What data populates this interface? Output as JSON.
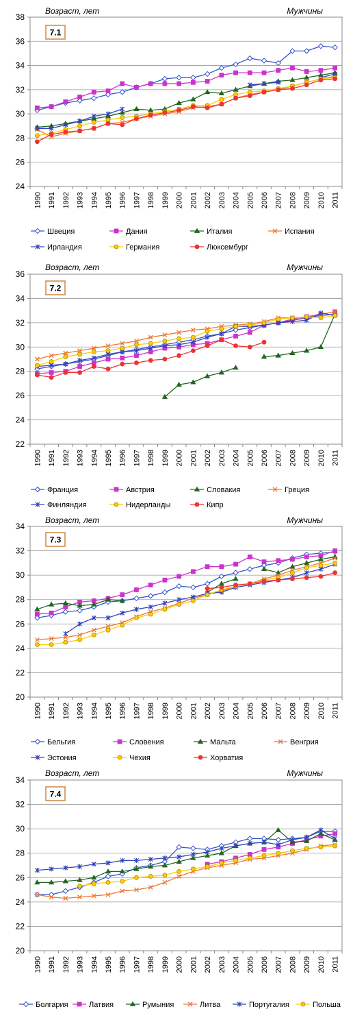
{
  "panels": [
    {
      "badge": "7.1",
      "ylabel": "Возраст, лет",
      "sex": "Мужчины"
    },
    {
      "badge": "7.2",
      "ylabel": "Возраст, лет",
      "sex": "Мужчины"
    },
    {
      "badge": "7.3",
      "ylabel": "Возраст, лет",
      "sex": "Мужчины"
    },
    {
      "badge": "7.4",
      "ylabel": "Возраст, лет",
      "sex": "Мужчины"
    }
  ],
  "chart_data": [
    {
      "type": "line",
      "title": "7.1",
      "ylabel": "Возраст, лет",
      "annotation": "Мужчины",
      "ylim": [
        24,
        38
      ],
      "ystep": 2,
      "grid": "horizontal",
      "legend_placement": "bottom",
      "x": [
        "1990",
        "1991",
        "1992",
        "1993",
        "1994",
        "1995",
        "1996",
        "1997",
        "1998",
        "1999",
        "2000",
        "2001",
        "2002",
        "2003",
        "2004",
        "2005",
        "2006",
        "2007",
        "2008",
        "2009",
        "2010",
        "2011"
      ],
      "series": [
        {
          "name": "Швеция",
          "color": "#3355cc",
          "marker": "diamond",
          "values": [
            30.3,
            30.6,
            30.9,
            31.1,
            31.3,
            31.6,
            31.8,
            32.2,
            32.5,
            32.9,
            33.0,
            33.0,
            33.3,
            33.8,
            34.1,
            34.6,
            34.4,
            34.2,
            35.2,
            35.2,
            35.6,
            35.5
          ]
        },
        {
          "name": "Дания",
          "color": "#cc33cc",
          "marker": "square",
          "values": [
            30.5,
            30.6,
            31.0,
            31.4,
            31.8,
            31.9,
            32.5,
            32.2,
            32.5,
            32.5,
            32.5,
            32.6,
            32.7,
            33.2,
            33.4,
            33.4,
            33.4,
            33.6,
            33.8,
            33.5,
            33.6,
            33.8
          ]
        },
        {
          "name": "Италия",
          "color": "#226622",
          "marker": "triangle",
          "values": [
            28.9,
            29.0,
            29.2,
            29.4,
            29.6,
            29.8,
            30.1,
            30.4,
            30.3,
            30.4,
            30.9,
            31.2,
            31.8,
            31.7,
            32.0,
            32.3,
            32.5,
            32.7,
            32.8,
            33.0,
            33.2,
            33.4
          ]
        },
        {
          "name": "Испания",
          "color": "#ee7733",
          "marker": "x",
          "values": [
            28.7,
            28.1,
            28.4,
            28.6,
            28.8,
            29.2,
            29.3,
            29.6,
            29.8,
            30.0,
            30.2,
            30.5,
            30.6,
            30.8,
            31.3,
            31.6,
            31.8,
            32.0,
            32.3,
            32.6,
            32.9,
            33.1
          ]
        },
        {
          "name": "Ирландия",
          "color": "#3344bb",
          "marker": "star",
          "values": [
            28.8,
            28.8,
            29.1,
            29.4,
            29.8,
            30.0,
            30.4,
            null,
            null,
            null,
            null,
            null,
            null,
            null,
            null,
            32.4,
            32.5,
            32.6,
            null,
            null,
            33.0,
            33.3
          ]
        },
        {
          "name": "Германия",
          "color": "#ffcc00",
          "marker": "circle",
          "values": [
            28.2,
            28.4,
            28.7,
            29.0,
            29.3,
            29.5,
            29.7,
            29.8,
            30.0,
            30.2,
            30.4,
            30.7,
            30.7,
            31.2,
            31.6,
            31.8,
            31.9,
            32.1,
            32.3,
            32.6,
            32.9,
            33.0
          ]
        },
        {
          "name": "Люксембург",
          "color": "#ee3333",
          "marker": "circle",
          "values": [
            27.7,
            28.3,
            28.5,
            28.6,
            28.8,
            29.2,
            29.1,
            29.6,
            29.9,
            30.1,
            30.3,
            30.6,
            30.5,
            30.8,
            31.3,
            31.5,
            31.8,
            32.0,
            32.1,
            32.4,
            32.8,
            32.9
          ]
        }
      ]
    },
    {
      "type": "line",
      "title": "7.2",
      "ylabel": "Возраст, лет",
      "annotation": "Мужчины",
      "ylim": [
        22,
        36
      ],
      "ystep": 2,
      "grid": "horizontal",
      "legend_placement": "bottom",
      "x": [
        "1990",
        "1991",
        "1992",
        "1993",
        "1994",
        "1995",
        "1996",
        "1997",
        "1998",
        "1999",
        "2000",
        "2001",
        "2002",
        "2003",
        "2004",
        "2005",
        "2006",
        "2007",
        "2008",
        "2009",
        "2010",
        "2011"
      ],
      "series": [
        {
          "name": "Франция",
          "color": "#3355cc",
          "marker": "diamond",
          "values": [
            28.2,
            28.4,
            28.6,
            28.8,
            29.0,
            29.3,
            29.6,
            29.8,
            30.0,
            30.2,
            30.4,
            30.6,
            30.9,
            31.1,
            31.4,
            31.6,
            31.8,
            32.0,
            32.2,
            32.4,
            32.6,
            32.7
          ]
        },
        {
          "name": "Австрия",
          "color": "#cc33cc",
          "marker": "square",
          "values": [
            27.8,
            27.9,
            28.0,
            28.4,
            28.7,
            29.0,
            29.1,
            29.3,
            29.6,
            29.9,
            30.0,
            30.2,
            30.3,
            30.6,
            30.9,
            31.2,
            31.8,
            32.0,
            32.3,
            32.5,
            32.7,
            32.9
          ]
        },
        {
          "name": "Словакия",
          "color": "#226622",
          "marker": "triangle",
          "values": [
            null,
            null,
            null,
            null,
            null,
            null,
            null,
            null,
            null,
            25.9,
            26.9,
            27.1,
            27.6,
            27.9,
            28.3,
            null,
            29.2,
            29.3,
            29.5,
            29.7,
            30.0,
            32.7
          ]
        },
        {
          "name": "Греция",
          "color": "#ee7733",
          "marker": "x",
          "values": [
            29.0,
            29.3,
            29.5,
            29.7,
            29.9,
            30.1,
            30.3,
            30.5,
            30.8,
            31.0,
            31.2,
            31.4,
            31.5,
            31.7,
            31.8,
            31.9,
            32.1,
            32.4,
            32.4,
            32.4,
            32.7,
            32.9
          ]
        },
        {
          "name": "Финляндия",
          "color": "#3344bb",
          "marker": "star",
          "values": [
            28.4,
            28.5,
            28.6,
            28.9,
            29.1,
            29.4,
            29.6,
            29.7,
            29.9,
            30.1,
            30.2,
            30.4,
            30.8,
            31.1,
            31.7,
            31.7,
            31.8,
            32.0,
            32.1,
            32.2,
            32.8,
            32.6
          ]
        },
        {
          "name": "Нидерланды",
          "color": "#ffcc00",
          "marker": "circle",
          "values": [
            28.5,
            28.8,
            29.2,
            29.4,
            29.6,
            29.7,
            29.9,
            30.2,
            30.3,
            30.5,
            30.7,
            30.8,
            31.3,
            31.5,
            31.7,
            31.8,
            32.0,
            32.3,
            32.4,
            32.5,
            32.4,
            32.6
          ]
        },
        {
          "name": "Кипр",
          "color": "#ee3333",
          "marker": "circle",
          "values": [
            27.7,
            27.5,
            27.9,
            27.9,
            28.4,
            28.2,
            28.6,
            28.7,
            28.9,
            29.0,
            29.3,
            29.7,
            30.1,
            30.6,
            30.1,
            30.0,
            30.4,
            null,
            null,
            null,
            null,
            null
          ]
        }
      ]
    },
    {
      "type": "line",
      "title": "7.3",
      "ylabel": "Возраст, лет",
      "annotation": "Мужчины",
      "ylim": [
        20,
        34
      ],
      "ystep": 2,
      "grid": "horizontal",
      "legend_placement": "bottom",
      "x": [
        "1990",
        "1991",
        "1992",
        "1993",
        "1994",
        "1995",
        "1996",
        "1997",
        "1998",
        "1999",
        "2000",
        "2001",
        "2002",
        "2003",
        "2004",
        "2005",
        "2006",
        "2007",
        "2008",
        "2009",
        "2010",
        "2011"
      ],
      "series": [
        {
          "name": "Бельгия",
          "color": "#3355cc",
          "marker": "diamond",
          "values": [
            26.5,
            26.7,
            27.0,
            27.1,
            27.4,
            27.8,
            27.9,
            28.1,
            28.3,
            28.6,
            29.1,
            29.0,
            29.3,
            29.9,
            30.2,
            30.5,
            30.8,
            31.0,
            31.4,
            31.7,
            31.8,
            31.9
          ]
        },
        {
          "name": "Словения",
          "color": "#cc33cc",
          "marker": "square",
          "values": [
            26.8,
            26.9,
            27.4,
            27.8,
            27.9,
            28.1,
            28.4,
            28.8,
            29.2,
            29.6,
            29.9,
            30.3,
            30.7,
            30.7,
            30.9,
            31.5,
            31.1,
            31.2,
            31.3,
            31.5,
            31.6,
            32.0
          ]
        },
        {
          "name": "Мальта",
          "color": "#226622",
          "marker": "triangle",
          "values": [
            27.2,
            27.6,
            27.7,
            27.5,
            27.6,
            28.0,
            27.9,
            null,
            null,
            null,
            null,
            null,
            28.6,
            29.3,
            29.7,
            null,
            30.5,
            30.2,
            30.7,
            31.0,
            31.3,
            31.5
          ]
        },
        {
          "name": "Венгрия",
          "color": "#ee7733",
          "marker": "x",
          "values": [
            24.7,
            24.8,
            24.9,
            25.1,
            25.5,
            25.8,
            26.1,
            26.6,
            27.0,
            27.3,
            27.7,
            28.1,
            28.4,
            28.7,
            29.1,
            29.3,
            29.7,
            30.0,
            30.4,
            30.7,
            31.0,
            31.4
          ]
        },
        {
          "name": "Эстония",
          "color": "#3344bb",
          "marker": "star",
          "values": [
            null,
            null,
            25.2,
            26.0,
            26.5,
            26.5,
            26.9,
            27.2,
            27.4,
            27.7,
            28.0,
            28.2,
            28.5,
            28.6,
            29.0,
            29.2,
            29.4,
            29.6,
            29.8,
            30.2,
            30.5,
            30.9
          ]
        },
        {
          "name": "Чехия",
          "color": "#ffcc00",
          "marker": "circle",
          "values": [
            24.3,
            24.3,
            24.5,
            24.7,
            25.1,
            25.5,
            25.9,
            26.5,
            26.8,
            27.2,
            27.6,
            27.9,
            28.4,
            28.8,
            29.1,
            29.3,
            29.6,
            29.8,
            30.2,
            30.6,
            30.8,
            31.0
          ]
        },
        {
          "name": "Хорватия",
          "color": "#ee3333",
          "marker": "circle",
          "values": [
            null,
            null,
            null,
            null,
            null,
            null,
            null,
            null,
            null,
            null,
            null,
            null,
            28.9,
            29.0,
            29.2,
            29.3,
            29.5,
            29.6,
            29.7,
            29.8,
            29.9,
            30.2
          ]
        }
      ]
    },
    {
      "type": "line",
      "title": "7.4",
      "ylabel": "Возраст, лет",
      "annotation": "Мужчины",
      "ylim": [
        20,
        34
      ],
      "ystep": 2,
      "grid": "horizontal",
      "legend_placement": "bottom",
      "x": [
        "1990",
        "1991",
        "1992",
        "1993",
        "1994",
        "1995",
        "1996",
        "1997",
        "1998",
        "1999",
        "2000",
        "2001",
        "2002",
        "2003",
        "2004",
        "2005",
        "2006",
        "2007",
        "2008",
        "2009",
        "2010",
        "2011"
      ],
      "series": [
        {
          "name": "Болгария",
          "color": "#3355cc",
          "marker": "diamond",
          "values": [
            24.6,
            24.6,
            24.9,
            25.2,
            25.6,
            26.1,
            26.3,
            26.8,
            27.0,
            27.3,
            28.5,
            28.4,
            28.3,
            28.6,
            28.9,
            29.2,
            29.2,
            29.1,
            29.2,
            29.3,
            29.8,
            29.8
          ]
        },
        {
          "name": "Латвия",
          "color": "#cc33cc",
          "marker": "square",
          "values": [
            null,
            null,
            null,
            null,
            null,
            null,
            null,
            null,
            null,
            null,
            null,
            null,
            27.1,
            27.3,
            27.6,
            27.9,
            28.3,
            28.5,
            28.8,
            29.1,
            29.4,
            29.6
          ]
        },
        {
          "name": "Румыния",
          "color": "#226622",
          "marker": "triangle",
          "values": [
            25.6,
            25.6,
            25.7,
            25.8,
            26.0,
            26.5,
            26.5,
            26.7,
            26.9,
            27.0,
            27.3,
            27.6,
            27.8,
            28.0,
            28.6,
            28.8,
            28.9,
            29.9,
            28.9,
            29.0,
            29.6,
            29.1
          ]
        },
        {
          "name": "Литва",
          "color": "#ee7733",
          "marker": "x",
          "values": [
            24.6,
            24.4,
            24.3,
            24.4,
            24.5,
            24.6,
            24.9,
            25.0,
            25.2,
            25.6,
            26.1,
            26.5,
            26.8,
            27.0,
            27.2,
            27.5,
            27.6,
            27.8,
            28.0,
            28.3,
            28.6,
            28.7
          ]
        },
        {
          "name": "Португалия",
          "color": "#3344bb",
          "marker": "star",
          "values": [
            26.6,
            26.7,
            26.8,
            26.9,
            27.1,
            27.2,
            27.4,
            27.4,
            27.5,
            27.6,
            27.7,
            27.9,
            28.1,
            28.4,
            28.6,
            28.8,
            28.9,
            28.7,
            29.1,
            29.3,
            29.9,
            29.2
          ]
        },
        {
          "name": "Польша",
          "color": "#ffcc00",
          "marker": "circle",
          "values": [
            null,
            null,
            null,
            25.3,
            25.5,
            25.6,
            25.7,
            26.0,
            26.1,
            26.2,
            26.5,
            26.7,
            26.9,
            27.2,
            27.4,
            27.6,
            27.8,
            28.0,
            28.2,
            28.4,
            28.5,
            28.6
          ]
        }
      ]
    }
  ]
}
